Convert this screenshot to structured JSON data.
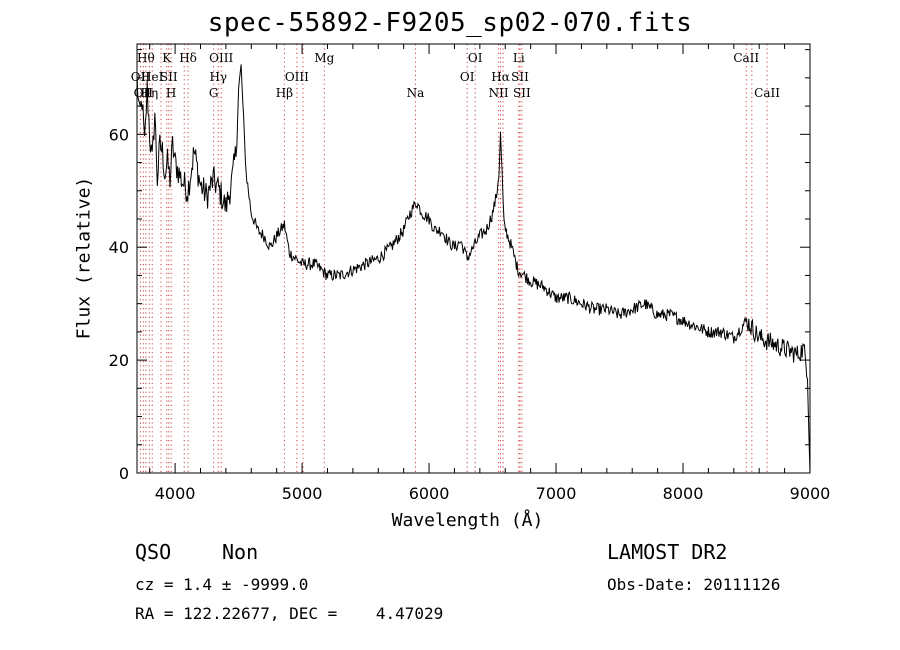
{
  "chart_data": {
    "type": "line",
    "title": "spec-55892-F9205_sp02-070.fits",
    "xlabel": "Wavelength (Å)",
    "ylabel": "Flux (relative)",
    "xlim": [
      3700,
      9000
    ],
    "ylim": [
      0,
      76
    ],
    "xticks": [
      4000,
      5000,
      6000,
      7000,
      8000,
      9000
    ],
    "yticks": [
      0,
      20,
      40,
      60
    ],
    "grid": false,
    "line_color": "#000000",
    "marker_color": "#d04040",
    "series": [
      {
        "x": [
          3700,
          3720,
          3740,
          3760,
          3780,
          3800,
          3820,
          3840,
          3860,
          3880,
          3900,
          3920,
          3940,
          3960,
          3980,
          4000,
          4050,
          4100,
          4150,
          4200,
          4250,
          4300,
          4350,
          4400,
          4450,
          4480,
          4500,
          4520,
          4540,
          4560,
          4600,
          4650,
          4700,
          4750,
          4800,
          4861,
          4900,
          4950,
          5000,
          5100,
          5200,
          5300,
          5400,
          5500,
          5600,
          5700,
          5800,
          5850,
          5900,
          5950,
          6000,
          6050,
          6100,
          6150,
          6200,
          6250,
          6300,
          6350,
          6400,
          6450,
          6500,
          6530,
          6550,
          6563,
          6575,
          6590,
          6620,
          6650,
          6700,
          6750,
          6800,
          6900,
          7000,
          7100,
          7200,
          7300,
          7400,
          7500,
          7600,
          7700,
          7800,
          7900,
          8000,
          8100,
          8200,
          8300,
          8400,
          8500,
          8600,
          8700,
          8800,
          8900,
          8950,
          8980,
          9000
        ],
        "y": [
          70,
          63,
          66,
          58,
          68,
          60,
          55,
          64,
          52,
          58,
          57,
          53,
          55,
          52,
          58,
          55,
          52,
          50,
          57,
          51,
          49,
          52,
          50,
          47,
          52,
          57,
          68,
          72,
          62,
          53,
          46,
          43,
          42,
          40,
          42,
          44,
          39,
          38,
          37,
          37,
          35,
          35,
          36,
          37,
          38,
          40,
          43,
          46,
          48,
          46,
          45,
          43,
          43,
          41,
          40,
          41,
          38,
          40,
          42,
          43,
          46,
          49,
          53,
          60,
          53,
          44,
          42,
          40,
          36,
          35,
          34,
          33,
          31,
          31,
          30,
          29,
          29,
          28,
          29,
          30,
          28,
          28,
          27,
          26,
          25,
          25,
          24,
          27,
          24,
          23,
          22,
          21,
          22,
          18,
          0
        ]
      }
    ],
    "lines": [
      {
        "w": 3727,
        "labels": [
          {
            "text": "OII",
            "row": 1
          }
        ]
      },
      {
        "w": 3750,
        "labels": [
          {
            "text": "OII",
            "row": 2
          }
        ]
      },
      {
        "w": 3770,
        "labels": [
          {
            "text": "Hθ",
            "row": 0
          }
        ]
      },
      {
        "w": 3797,
        "labels": [
          {
            "text": "Hη",
            "row": 2
          }
        ]
      },
      {
        "w": 3820,
        "labels": [
          {
            "text": "HeI",
            "row": 1
          }
        ]
      },
      {
        "w": 3889,
        "labels": []
      },
      {
        "w": 3934,
        "labels": [
          {
            "text": "K",
            "row": 0
          }
        ]
      },
      {
        "w": 3950,
        "labels": [
          {
            "text": "SII",
            "row": 1
          }
        ]
      },
      {
        "w": 3969,
        "labels": [
          {
            "text": "H",
            "row": 2
          }
        ]
      },
      {
        "w": 4072,
        "labels": []
      },
      {
        "w": 4102,
        "labels": [
          {
            "text": "Hδ",
            "row": 0
          }
        ]
      },
      {
        "w": 4304,
        "labels": [
          {
            "text": "G",
            "row": 2
          }
        ]
      },
      {
        "w": 4340,
        "labels": [
          {
            "text": "Hγ",
            "row": 1
          }
        ]
      },
      {
        "w": 4363,
        "labels": [
          {
            "text": "OIII",
            "row": 0
          }
        ]
      },
      {
        "w": 4861,
        "labels": [
          {
            "text": "Hβ",
            "row": 2
          }
        ]
      },
      {
        "w": 4959,
        "labels": [
          {
            "text": "OIII",
            "row": 1
          }
        ]
      },
      {
        "w": 5007,
        "labels": []
      },
      {
        "w": 5175,
        "labels": [
          {
            "text": "Mg",
            "row": 0
          }
        ]
      },
      {
        "w": 5893,
        "labels": [
          {
            "text": "Na",
            "row": 2
          }
        ]
      },
      {
        "w": 6300,
        "labels": [
          {
            "text": "OI",
            "row": 1
          }
        ]
      },
      {
        "w": 6363,
        "labels": [
          {
            "text": "OI",
            "row": 0
          }
        ]
      },
      {
        "w": 6548,
        "labels": [
          {
            "text": "NII",
            "row": 2
          }
        ]
      },
      {
        "w": 6563,
        "labels": [
          {
            "text": "Hα",
            "row": 1
          }
        ]
      },
      {
        "w": 6583,
        "labels": []
      },
      {
        "w": 6707,
        "labels": [
          {
            "text": "Li",
            "row": 0
          }
        ]
      },
      {
        "w": 6716,
        "labels": [
          {
            "text": "SII",
            "row": 1
          }
        ]
      },
      {
        "w": 6731,
        "labels": [
          {
            "text": "SII",
            "row": 2
          }
        ]
      },
      {
        "w": 8498,
        "labels": [
          {
            "text": "CaII",
            "row": 0
          }
        ]
      },
      {
        "w": 8542,
        "labels": []
      },
      {
        "w": 8662,
        "labels": [
          {
            "text": "CaII",
            "row": 2
          }
        ]
      }
    ]
  },
  "info": {
    "class": "QSO",
    "subclass": "Non",
    "survey": "LAMOST DR2",
    "cz": "cz = 1.4 ± -9999.0",
    "obs_date": "Obs-Date: 20111126",
    "radec": "RA = 122.22677, DEC =    4.47029"
  }
}
